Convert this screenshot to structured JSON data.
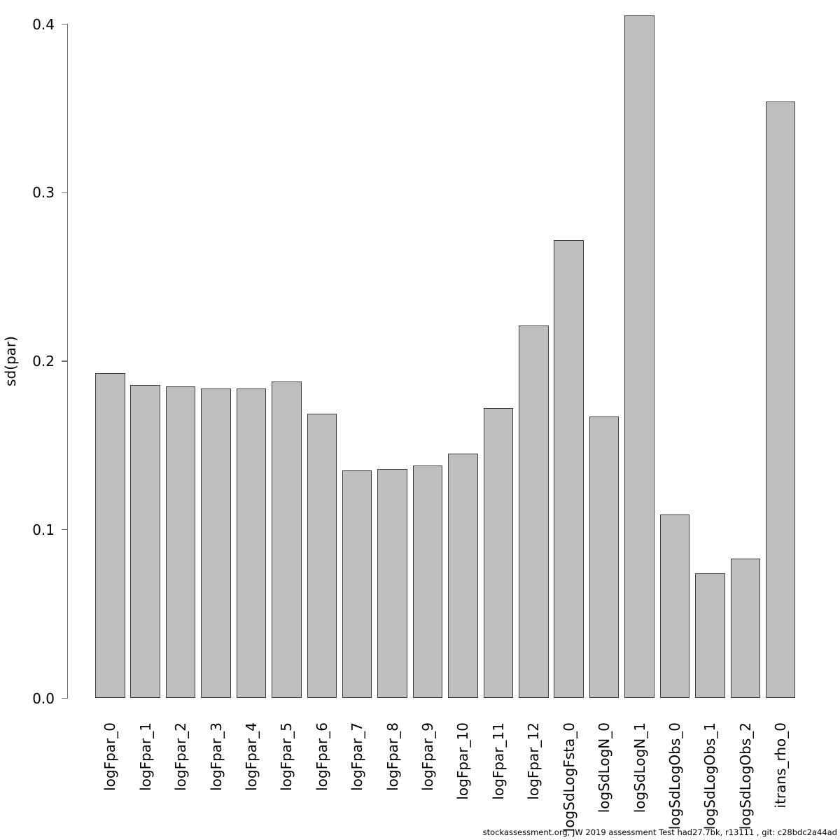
{
  "chart_data": {
    "type": "bar",
    "title": "",
    "xlabel": "",
    "ylabel": "sd(par)",
    "categories": [
      "logFpar_0",
      "logFpar_1",
      "logFpar_2",
      "logFpar_3",
      "logFpar_4",
      "logFpar_5",
      "logFpar_6",
      "logFpar_7",
      "logFpar_8",
      "logFpar_9",
      "logFpar_10",
      "logFpar_11",
      "logFpar_12",
      "logSdLogFsta_0",
      "logSdLogN_0",
      "logSdLogN_1",
      "logSdLogObs_0",
      "logSdLogObs_1",
      "logSdLogObs_2",
      "itrans_rho_0"
    ],
    "values": [
      0.193,
      0.186,
      0.185,
      0.184,
      0.184,
      0.188,
      0.169,
      0.135,
      0.136,
      0.138,
      0.145,
      0.172,
      0.221,
      0.272,
      0.167,
      0.405,
      0.109,
      0.074,
      0.083,
      0.354
    ],
    "ylim": [
      0,
      0.415
    ],
    "ytick_labels": [
      "0.0",
      "0.1",
      "0.2",
      "0.3",
      "0.4"
    ],
    "ytick_values": [
      0.0,
      0.1,
      0.2,
      0.3,
      0.4
    ],
    "grid": false,
    "legend": false,
    "bar_fill": "#bebebe",
    "bar_border": "#3d3d3d",
    "axis_color": "#6e6e6e"
  },
  "footer": {
    "text": "stockassessment.org, JW  2019  assessment  Test  had27.7bk, r13111 , git: c28bdc2a44ad"
  }
}
